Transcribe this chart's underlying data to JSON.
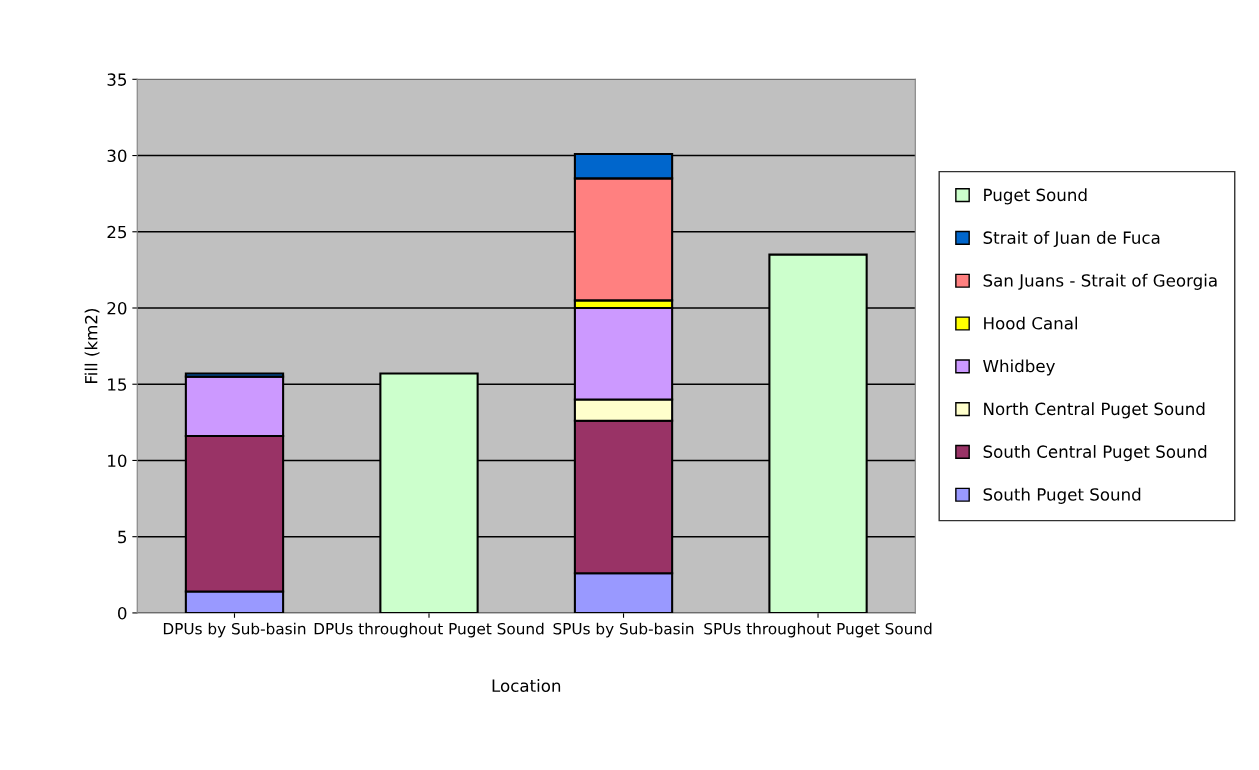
{
  "chart_data": {
    "type": "bar",
    "stacked": true,
    "xlabel": "Location",
    "ylabel": "Fill (km2)",
    "categories": [
      "DPUs by Sub-basin",
      "DPUs throughout Puget Sound",
      "SPUs by Sub-basin",
      "SPUs throughout Puget Sound"
    ],
    "ylim": [
      0,
      35
    ],
    "yticks": [
      0,
      5,
      10,
      15,
      20,
      25,
      30,
      35
    ],
    "grid": "y",
    "legend": "right",
    "series": [
      {
        "name": "South Puget Sound",
        "color": "#9999ff",
        "values": [
          1.4,
          null,
          2.6,
          null
        ]
      },
      {
        "name": "South Central Puget Sound",
        "color": "#993366",
        "values": [
          10.2,
          null,
          10.0,
          null
        ]
      },
      {
        "name": "North Central Puget Sound",
        "color": "#ffffcc",
        "values": [
          null,
          null,
          1.4,
          null
        ]
      },
      {
        "name": "Whidbey",
        "color": "#cc99ff",
        "values": [
          3.9,
          null,
          6.0,
          null
        ]
      },
      {
        "name": "Hood Canal",
        "color": "#ffff00",
        "values": [
          null,
          null,
          0.5,
          null
        ]
      },
      {
        "name": "San Juans - Strait of Georgia",
        "color": "#ff8080",
        "values": [
          null,
          null,
          8.0,
          null
        ]
      },
      {
        "name": "Strait of Juan de Fuca",
        "color": "#0066cc",
        "values": [
          0.2,
          null,
          1.6,
          null
        ]
      },
      {
        "name": "Puget Sound",
        "color": "#ccffcc",
        "values": [
          null,
          15.7,
          null,
          23.5
        ]
      }
    ]
  }
}
